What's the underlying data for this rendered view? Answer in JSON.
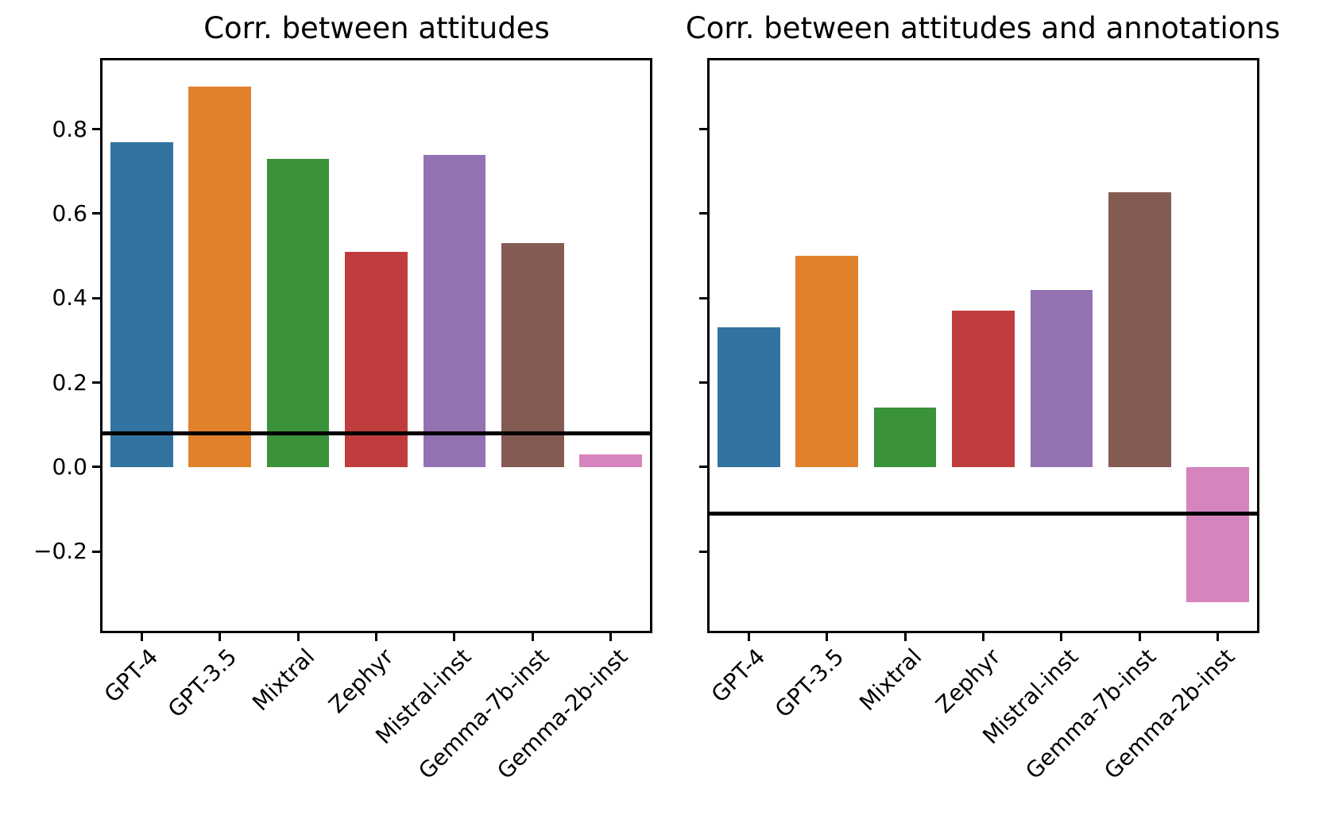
{
  "figure": {
    "background_color": "#ffffff",
    "text_color": "#000000",
    "axis_color": "#000000"
  },
  "categories": [
    "GPT-4",
    "GPT-3.5",
    "Mixtral",
    "Zephyr",
    "Mistral-inst",
    "Gemma-7b-inst",
    "Gemma-2b-inst"
  ],
  "bar_colors": [
    "#3274a1",
    "#e1812c",
    "#3a923a",
    "#c03d3e",
    "#9372b2",
    "#845b53",
    "#d684bd"
  ],
  "chart_data": [
    {
      "type": "bar",
      "title": "Corr. between attitudes",
      "categories": [
        "GPT-4",
        "GPT-3.5",
        "Mixtral",
        "Zephyr",
        "Mistral-inst",
        "Gemma-7b-inst",
        "Gemma-2b-inst"
      ],
      "values": [
        0.77,
        0.9,
        0.73,
        0.51,
        0.74,
        0.53,
        0.03
      ],
      "bar_colors": [
        "#3274a1",
        "#e1812c",
        "#3a923a",
        "#c03d3e",
        "#9372b2",
        "#845b53",
        "#d684bd"
      ],
      "reference_line_y": 0.08,
      "xlabel": "",
      "ylabel": "",
      "ylim": [
        -0.388,
        0.963
      ],
      "yticks": [
        0.8,
        0.6,
        0.4,
        0.2,
        0.0,
        -0.2
      ],
      "ytick_labels": [
        "0.8",
        "0.6",
        "0.4",
        "0.2",
        "0.0",
        "−0.2"
      ],
      "show_ytick_labels": true,
      "grid": false,
      "legend": "none",
      "xtick_rotation_deg": 45
    },
    {
      "type": "bar",
      "title": "Corr. between attitudes and annotations",
      "categories": [
        "GPT-4",
        "GPT-3.5",
        "Mixtral",
        "Zephyr",
        "Mistral-inst",
        "Gemma-7b-inst",
        "Gemma-2b-inst"
      ],
      "values": [
        0.33,
        0.5,
        0.14,
        0.37,
        0.42,
        0.65,
        -0.32
      ],
      "bar_colors": [
        "#3274a1",
        "#e1812c",
        "#3a923a",
        "#c03d3e",
        "#9372b2",
        "#845b53",
        "#d684bd"
      ],
      "reference_line_y": -0.11,
      "xlabel": "",
      "ylabel": "",
      "ylim": [
        -0.388,
        0.963
      ],
      "yticks": [
        0.8,
        0.6,
        0.4,
        0.2,
        0.0,
        -0.2
      ],
      "ytick_labels": [
        "0.8",
        "0.6",
        "0.4",
        "0.2",
        "0.0",
        "−0.2"
      ],
      "show_ytick_labels": false,
      "grid": false,
      "legend": "none",
      "xtick_rotation_deg": 45
    }
  ]
}
